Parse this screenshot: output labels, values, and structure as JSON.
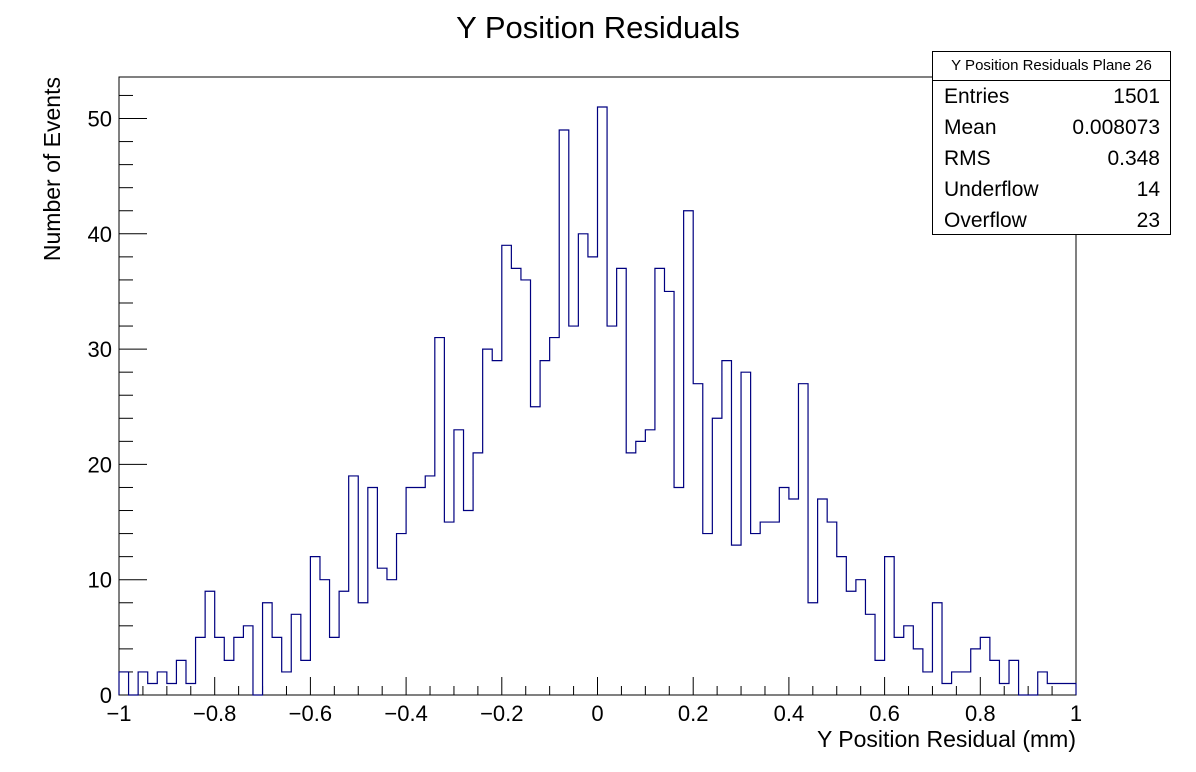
{
  "chart_data": {
    "type": "bar",
    "title": "Y Position Residuals",
    "xlabel": "Y Position Residual (mm)",
    "ylabel": "Number of Events",
    "xlim": [
      -1,
      1
    ],
    "ylim": [
      0,
      53.6
    ],
    "x_ticks": [
      -1,
      -0.8,
      -0.6,
      -0.4,
      -0.2,
      0,
      0.2,
      0.4,
      0.6,
      0.8,
      1
    ],
    "x_tick_labels": [
      "−1",
      "−0.8",
      "−0.6",
      "−0.4",
      "−0.2",
      "0",
      "0.2",
      "0.4",
      "0.6",
      "0.8",
      "1"
    ],
    "y_ticks": [
      0,
      10,
      20,
      30,
      40,
      50
    ],
    "y_tick_labels": [
      "0",
      "10",
      "20",
      "30",
      "40",
      "50"
    ],
    "bins": {
      "n": 100,
      "low": -1,
      "high": 1
    },
    "values": [
      2,
      0,
      2,
      1,
      2,
      1,
      3,
      1,
      5,
      9,
      5,
      3,
      5,
      6,
      0,
      8,
      5,
      2,
      7,
      3,
      12,
      10,
      5,
      9,
      19,
      8,
      18,
      11,
      10,
      14,
      18,
      18,
      19,
      31,
      15,
      23,
      16,
      21,
      30,
      29,
      39,
      37,
      36,
      25,
      29,
      31,
      49,
      32,
      40,
      38,
      51,
      32,
      37,
      21,
      22,
      23,
      37,
      35,
      18,
      42,
      27,
      14,
      24,
      29,
      13,
      28,
      14,
      15,
      15,
      18,
      17,
      27,
      8,
      17,
      15,
      12,
      9,
      10,
      7,
      3,
      12,
      5,
      6,
      4,
      2,
      8,
      1,
      2,
      2,
      4,
      5,
      3,
      1,
      3,
      0,
      0,
      2,
      1,
      1,
      1
    ],
    "line_color": "#000080",
    "grid": false,
    "legend": "stats box top-right"
  },
  "stats": {
    "title": "Y Position Residuals Plane 26",
    "rows": [
      {
        "label": "Entries",
        "value": "1501"
      },
      {
        "label": "Mean",
        "value": "0.008073"
      },
      {
        "label": "RMS",
        "value": "0.348"
      },
      {
        "label": "Underflow",
        "value": "14"
      },
      {
        "label": "Overflow",
        "value": "23"
      }
    ]
  }
}
